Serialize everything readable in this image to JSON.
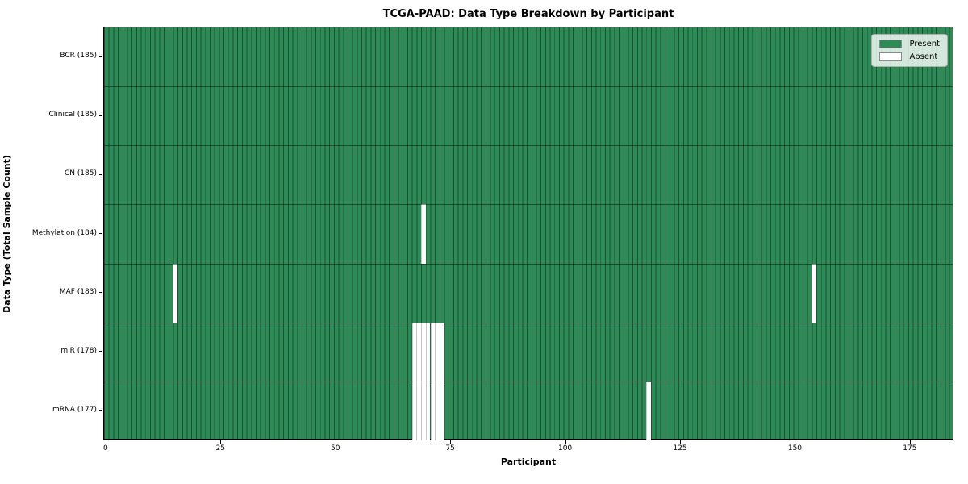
{
  "figure": {
    "title": "TCGA-PAAD: Data Type Breakdown by Participant"
  },
  "chart_data": {
    "type": "heatmap",
    "title": "TCGA-PAAD: Data Type Breakdown by Participant",
    "xlabel": "Participant",
    "ylabel": "Data Type (Total Sample Count)",
    "n_participants": 185,
    "x_ticks": [
      0,
      25,
      50,
      75,
      100,
      125,
      150,
      175
    ],
    "colors": {
      "present": "#2e8b57",
      "absent": "#ffffff",
      "cell_edge_on_green": "rgba(0,0,0,0.42)",
      "cell_edge_on_white": "#c9c9c9"
    },
    "legend": {
      "position": "upper right",
      "entries": [
        {
          "label": "Present",
          "color": "#2e8b57"
        },
        {
          "label": "Absent",
          "color": "#ffffff"
        }
      ]
    },
    "rows": [
      {
        "label": "BCR (185)",
        "data_type": "BCR",
        "total_samples": 185,
        "absent_participants": []
      },
      {
        "label": "Clinical (185)",
        "data_type": "Clinical",
        "total_samples": 185,
        "absent_participants": []
      },
      {
        "label": "CN (185)",
        "data_type": "CN",
        "total_samples": 185,
        "absent_participants": []
      },
      {
        "label": "Methylation (184)",
        "data_type": "Methylation",
        "total_samples": 184,
        "absent_participants": [
          69
        ]
      },
      {
        "label": "MAF (183)",
        "data_type": "MAF",
        "total_samples": 183,
        "absent_participants": [
          15,
          154
        ]
      },
      {
        "label": "miR (178)",
        "data_type": "miR",
        "total_samples": 178,
        "absent_participants": [
          67,
          68,
          69,
          70,
          71,
          72,
          73
        ]
      },
      {
        "label": "mRNA (177)",
        "data_type": "mRNA",
        "total_samples": 177,
        "absent_participants": [
          67,
          68,
          69,
          70,
          71,
          72,
          73,
          118
        ]
      }
    ]
  }
}
